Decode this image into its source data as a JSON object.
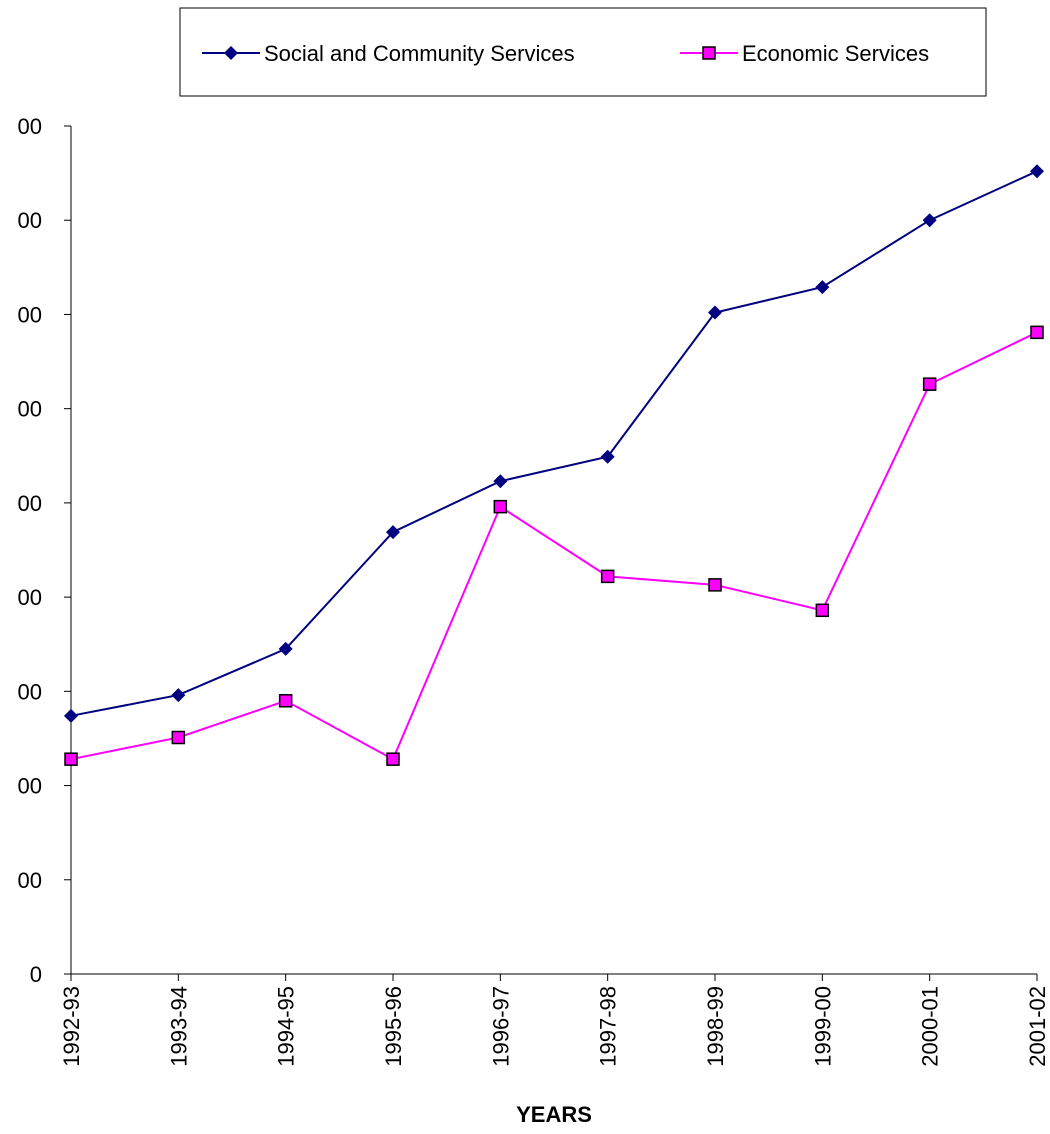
{
  "chart_data": {
    "type": "line",
    "title": "",
    "xlabel": "YEARS",
    "ylabel": "",
    "categories": [
      "1992-93",
      "1993-94",
      "1994-95",
      "1995-96",
      "1996-97",
      "1997-98",
      "1998-99",
      "1999-00",
      "2000-01",
      "2001-02"
    ],
    "y_tick_labels": [
      "0",
      "00",
      "00",
      "00",
      "00",
      "00",
      "00",
      "00",
      "00",
      "00"
    ],
    "ylim": [
      0,
      9
    ],
    "grid": false,
    "legend_position": "top-center",
    "series": [
      {
        "name": "Social and Community Services",
        "color": "#000080",
        "marker": "diamond",
        "values": [
          2.74,
          2.96,
          3.45,
          4.69,
          5.23,
          5.49,
          7.02,
          7.29,
          8.0,
          8.52
        ]
      },
      {
        "name": "Economic Services",
        "color": "#FF00FF",
        "marker": "square",
        "values": [
          2.28,
          2.51,
          2.9,
          2.28,
          4.96,
          4.22,
          4.13,
          3.86,
          6.26,
          6.81
        ]
      }
    ]
  }
}
